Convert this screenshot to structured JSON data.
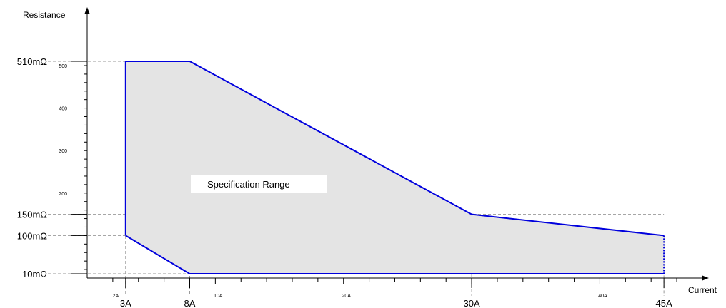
{
  "chart_data": {
    "type": "area",
    "xlabel": "Current",
    "ylabel": "Resistance",
    "x_unit": "A",
    "y_unit": "mΩ",
    "xlim": [
      0,
      48.5
    ],
    "ylim": [
      0,
      525
    ],
    "region_label": "Specification Range",
    "region_polygon": [
      {
        "x": 3,
        "y": 100
      },
      {
        "x": 3,
        "y": 510
      },
      {
        "x": 8,
        "y": 510
      },
      {
        "x": 30,
        "y": 150
      },
      {
        "x": 45,
        "y": 100
      },
      {
        "x": 45,
        "y": 10
      },
      {
        "x": 8,
        "y": 10
      }
    ],
    "minor_x_ticks": [
      2,
      10,
      20,
      40
    ],
    "minor_x_tick_labels": [
      "2A",
      "10A",
      "20A",
      "40A"
    ],
    "major_x_ticks": [
      3,
      8,
      30,
      45
    ],
    "major_x_tick_labels": [
      "3A",
      "8A",
      "30A",
      "45A"
    ],
    "minor_y_ticks": [
      200,
      300,
      400,
      500
    ],
    "minor_y_tick_labels": [
      "200",
      "300",
      "400",
      "500"
    ],
    "major_y_ticks": [
      10,
      100,
      150,
      510
    ],
    "major_y_tick_labels": [
      "10mΩ",
      "100mΩ",
      "150mΩ",
      "510mΩ"
    ],
    "x_minor_step": 2,
    "y_minor_step": 20,
    "colors": {
      "region_fill": "#e4e4e4",
      "boundary": "#0000dd",
      "guide": "#999999",
      "axis": "#000000"
    }
  }
}
